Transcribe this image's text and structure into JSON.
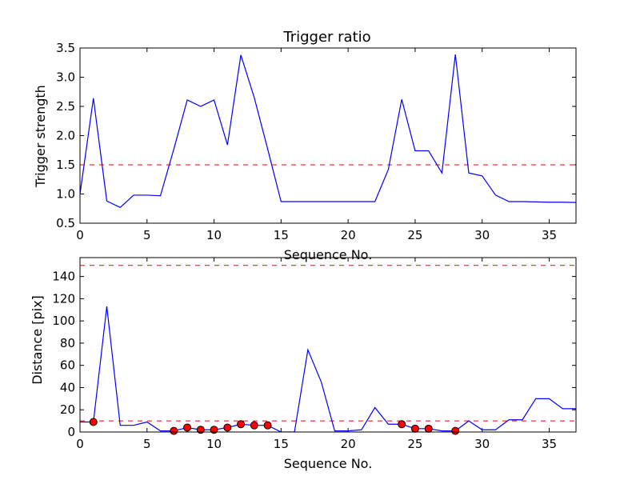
{
  "chart_data": [
    {
      "type": "line",
      "title": "Trigger ratio",
      "xlabel": "Sequence No.",
      "ylabel": "Trigger strength",
      "xlim": [
        0,
        37
      ],
      "ylim": [
        0.5,
        3.5
      ],
      "xticks": [
        0,
        5,
        10,
        15,
        20,
        25,
        30,
        35
      ],
      "yticks": [
        0.5,
        1.0,
        1.5,
        2.0,
        2.5,
        3.0,
        3.5
      ],
      "xtick_labels": [
        "0",
        "5",
        "10",
        "15",
        "20",
        "25",
        "30",
        "35"
      ],
      "ytick_labels": [
        "0.5",
        "1.0",
        "1.5",
        "2.0",
        "2.5",
        "3.0",
        "3.5"
      ],
      "grid": false,
      "threshold": 1.5,
      "series": [
        {
          "color": "#0000ff",
          "x": [
            0,
            1,
            2,
            3,
            4,
            5,
            6,
            7,
            8,
            9,
            10,
            11,
            12,
            13,
            14,
            15,
            16,
            17,
            18,
            19,
            20,
            21,
            22,
            23,
            24,
            25,
            26,
            27,
            28,
            29,
            30,
            31,
            32,
            33,
            34,
            35,
            36,
            37
          ],
          "y": [
            1.0,
            2.64,
            0.88,
            0.77,
            0.98,
            0.98,
            0.97,
            1.77,
            2.61,
            2.5,
            2.61,
            1.84,
            3.38,
            2.65,
            1.77,
            0.87,
            0.87,
            0.87,
            0.87,
            0.87,
            0.87,
            0.87,
            0.87,
            1.42,
            2.62,
            1.74,
            1.74,
            1.36,
            3.39,
            1.36,
            1.31,
            0.98,
            0.87,
            0.87,
            0.865,
            0.86,
            0.86,
            0.855
          ]
        }
      ]
    },
    {
      "type": "line",
      "title": "",
      "xlabel": "Sequence No.",
      "ylabel": "Distance [pix]",
      "xlim": [
        0,
        37
      ],
      "ylim": [
        0,
        157
      ],
      "xticks": [
        0,
        5,
        10,
        15,
        20,
        25,
        30,
        35
      ],
      "yticks": [
        0,
        20,
        40,
        60,
        80,
        100,
        120,
        140
      ],
      "xtick_labels": [
        "0",
        "5",
        "10",
        "15",
        "20",
        "25",
        "30",
        "35"
      ],
      "ytick_labels": [
        "0",
        "20",
        "40",
        "60",
        "80",
        "100",
        "120",
        "140"
      ],
      "grid": false,
      "thresholds": [
        10,
        150
      ],
      "series": [
        {
          "color": "#0000ff",
          "x": [
            0,
            1,
            2,
            3,
            4,
            5,
            6,
            7,
            8,
            9,
            10,
            11,
            12,
            13,
            14,
            15,
            16,
            17,
            18,
            19,
            20,
            21,
            22,
            23,
            24,
            25,
            26,
            27,
            28,
            29,
            30,
            31,
            32,
            33,
            34,
            35,
            36,
            37
          ],
          "y": [
            9,
            9,
            113,
            6,
            6,
            9,
            1,
            1,
            4,
            2,
            2,
            4,
            7,
            6,
            6,
            0,
            0,
            74,
            45,
            1,
            1,
            2,
            22,
            7,
            7,
            3,
            3,
            1,
            1,
            10,
            2,
            2,
            11,
            11,
            30,
            30,
            21,
            21
          ]
        }
      ],
      "markers": {
        "color": "#ff0000",
        "x": [
          1,
          7,
          8,
          9,
          10,
          11,
          12,
          13,
          14,
          24,
          25,
          26,
          28
        ],
        "y": [
          9,
          1,
          4,
          2,
          2,
          4,
          7,
          6,
          6,
          7,
          3,
          3,
          1
        ]
      }
    }
  ]
}
